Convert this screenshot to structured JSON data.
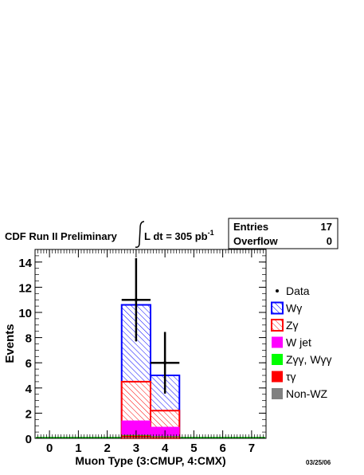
{
  "header": {
    "title_prefix": "CDF Run II Preliminary",
    "lumi_text": "L dt = 305 pb",
    "lumi_exp": "-1",
    "stats": [
      {
        "label": "Entries",
        "value": "17"
      },
      {
        "label": "Overflow",
        "value": "0"
      }
    ]
  },
  "footer": {
    "date": "03/25/06"
  },
  "legend": [
    {
      "label": "Data",
      "style": "marker"
    },
    {
      "label": "Wγ",
      "style": "hatch",
      "color": "#0000ff"
    },
    {
      "label": "Zγ",
      "style": "hatch",
      "color": "#ff0000"
    },
    {
      "label": "W jet",
      "style": "fill",
      "color": "#ff00ff"
    },
    {
      "label": "Zγγ, Wγγ",
      "style": "fill",
      "color": "#00ff00"
    },
    {
      "label": "τγ",
      "style": "fill",
      "color": "#ff0000"
    },
    {
      "label": "Non-WZ",
      "style": "fill",
      "color": "#808080"
    }
  ],
  "chart_data": {
    "type": "bar",
    "title": "",
    "xlabel": "Muon Type (3:CMUP, 4:CMX)",
    "ylabel": "Events",
    "xlim": [
      -0.5,
      7.5
    ],
    "ylim": [
      0,
      15
    ],
    "x_ticks": [
      "0",
      "1",
      "2",
      "3",
      "4",
      "5",
      "6",
      "7"
    ],
    "y_ticks": [
      "0",
      "2",
      "4",
      "6",
      "8",
      "10",
      "12",
      "14"
    ],
    "bins": [
      3,
      4
    ],
    "bin_width": 1,
    "stacked_totals": [
      {
        "name": "Wγ",
        "values": [
          10.6,
          5.0
        ],
        "color": "#0000ff"
      },
      {
        "name": "Zγ",
        "values": [
          4.5,
          2.2
        ],
        "color": "#ff0000"
      },
      {
        "name": "W jet",
        "values": [
          1.4,
          0.9
        ],
        "color": "#ff00ff"
      },
      {
        "name": "Zγγ, Wγγ",
        "values": [
          0.25,
          0.15
        ],
        "color": "#00ff00"
      },
      {
        "name": "τγ",
        "values": [
          0.2,
          0.1
        ],
        "color": "#ff0000"
      },
      {
        "name": "Non-WZ",
        "values": [
          0.05,
          0.03
        ],
        "color": "#808080"
      }
    ],
    "data_points": [
      {
        "x": 3,
        "y": 11,
        "err": 3.3
      },
      {
        "x": 4,
        "y": 6,
        "err": 2.45
      }
    ]
  }
}
